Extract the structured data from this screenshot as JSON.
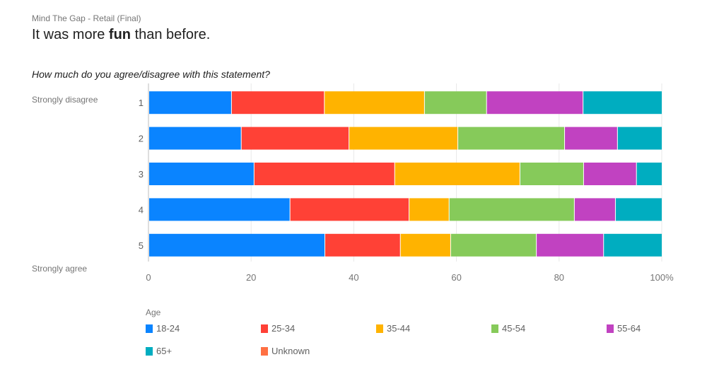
{
  "header": {
    "subtitle": "Mind The Gap - Retail (Final)",
    "title_pre": "It was more ",
    "title_bold": "fun",
    "title_post": " than before."
  },
  "chart_data": {
    "type": "bar",
    "orientation": "horizontal",
    "stacked": "percent",
    "question": "How much do you agree/disagree with this statement?",
    "scale_top_label": "Strongly disagree",
    "scale_bottom_label": "Strongly agree",
    "categories": [
      "1",
      "2",
      "3",
      "4",
      "5"
    ],
    "xlim": [
      0,
      100
    ],
    "xticks": [
      "0",
      "20",
      "40",
      "60",
      "80",
      "100%"
    ],
    "legend_title": "Age",
    "legend_position": "bottom",
    "series": [
      {
        "name": "18-24",
        "color": "#0a84ff",
        "values": [
          16.1,
          18.0,
          20.5,
          27.5,
          34.3
        ]
      },
      {
        "name": "25-34",
        "color": "#ff4136",
        "values": [
          18.1,
          21.0,
          27.4,
          23.2,
          14.7
        ]
      },
      {
        "name": "35-44",
        "color": "#ffb300",
        "values": [
          19.5,
          21.2,
          24.4,
          7.8,
          9.8
        ]
      },
      {
        "name": "45-54",
        "color": "#86ca5a",
        "values": [
          12.1,
          20.8,
          12.4,
          24.4,
          16.7
        ]
      },
      {
        "name": "55-64",
        "color": "#c142c1",
        "values": [
          18.8,
          10.3,
          10.3,
          8.0,
          13.1
        ]
      },
      {
        "name": "65+",
        "color": "#00adc0",
        "values": [
          15.4,
          8.7,
          5.0,
          9.1,
          11.4
        ]
      },
      {
        "name": "Unknown",
        "color": "#ff7043",
        "values": [
          0,
          0,
          0,
          0,
          0
        ]
      }
    ]
  }
}
